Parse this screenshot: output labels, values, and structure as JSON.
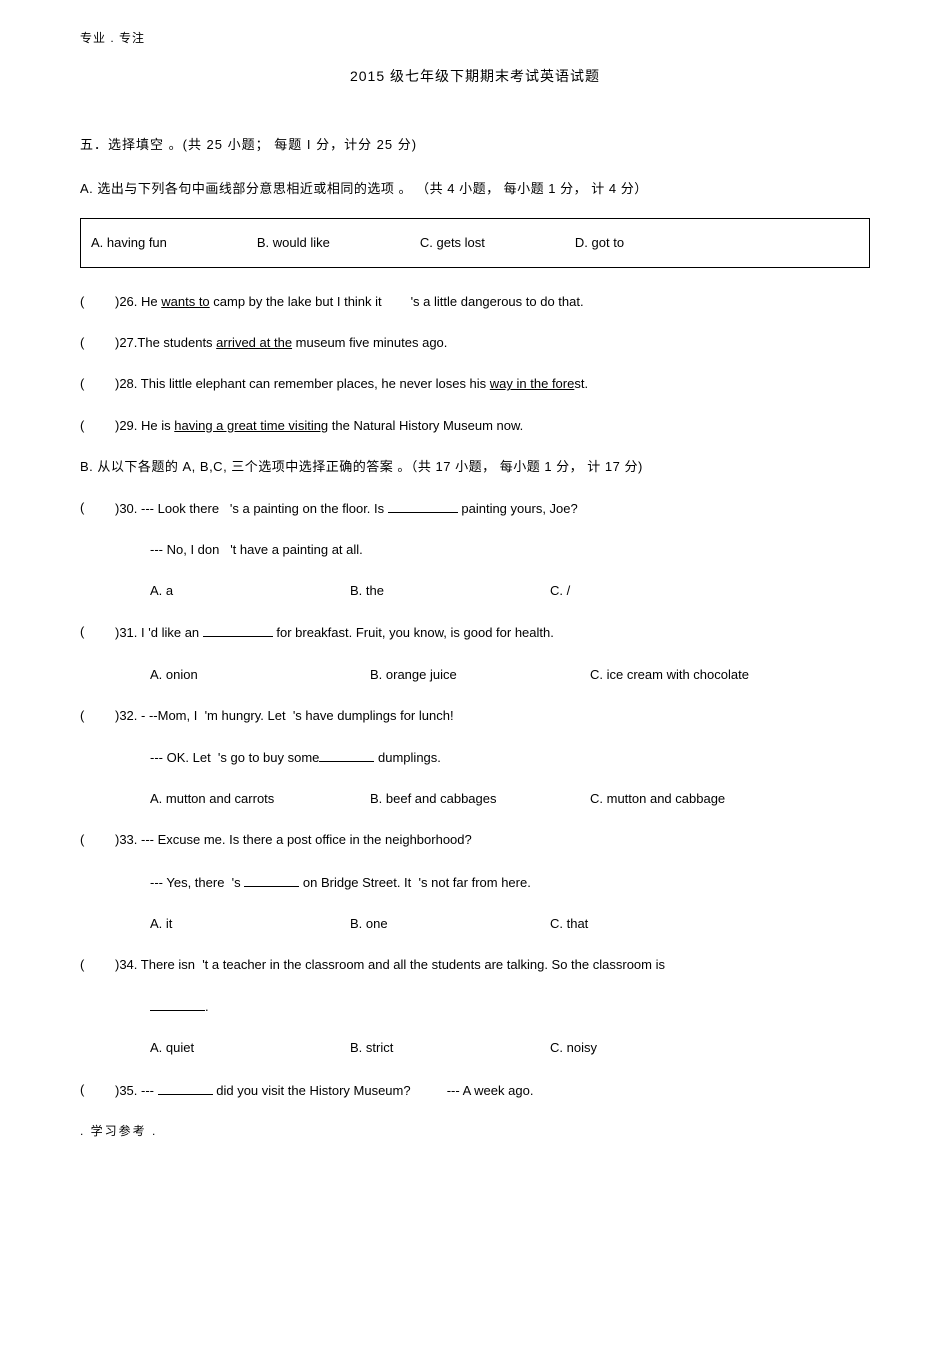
{
  "header": "专业 . 专注",
  "title": "2015  级七年级下期期末考试英语试题",
  "section5_title": "五．选择填空  。(共 25 小题； 每题 I 分，计分 25 分)",
  "partA_instruction": "A. 选出与下列各句中画线部分意思相近或相同的选项       。 （共 4 小题， 每小题  1 分， 计 4 分）",
  "optionBox": {
    "a": "A. having fun",
    "b": "B. would like",
    "c": "C. gets lost",
    "d": "D. got to"
  },
  "q26": {
    "pre": ")26. He ",
    "u": "wants to",
    "mid": " camp by the lake but I think it",
    "post": "'s a little dangerous to do that."
  },
  "q27": {
    "pre": ")27.The students ",
    "u": "arrived at the",
    "post": " museum five minutes ago."
  },
  "q28": {
    "pre": ")28. This little elephant can remember places, he never loses his ",
    "u": "way in the fore",
    "post": "st."
  },
  "q29": {
    "pre": ")29. He is ",
    "u": "having a great time visiting",
    "post": " the Natural History Museum now."
  },
  "partB_instruction": "B.  从以下各题的   A, B,C,  三个选项中选择正确的答案    。（共 17 小题， 每小题  1 分， 计 17 分)",
  "q30": {
    "line1a": ")30.  --- Look there",
    "line1b": "'s a painting on the floor. Is ",
    "line1c": " painting yours, Joe?",
    "line2a": "--- No, I don",
    "line2b": "'t have a painting at all.",
    "a": "A. a",
    "b": "B. the",
    "c": "C. /"
  },
  "q31": {
    "text_a": ")31. I ",
    "text_b": "'d like an ",
    "text_c": " for breakfast. Fruit, you know, is good for health.",
    "a": "A. onion",
    "b": "B. orange juice",
    "c": "C. ice cream with chocolate"
  },
  "q32": {
    "line1a": ")32.  - --Mom, I",
    "line1b": "'m hungry. Let",
    "line1c": "'s have dumplings for lunch!",
    "line2a": "--- OK. Let",
    "line2b": "'s go to buy some",
    "line2c": " dumplings.",
    "a": "A. mutton and carrots",
    "b": "B. beef and cabbages",
    "c": "C. mutton and cabbage"
  },
  "q33": {
    "line1": ")33.  --- Excuse me. Is there a post office in the neighborhood?",
    "line2a": "--- Yes, there",
    "line2b": "'s ",
    "line2c": " on Bridge Street. It",
    "line2d": "'s not far from here.",
    "a": "A. it",
    "b": "B. one",
    "c": "C. that"
  },
  "q34": {
    "line1a": ")34. There isn",
    "line1b": "'t a teacher in the classroom and all the students are talking. So the classroom is",
    "blankline": ".",
    "a": "A. quiet",
    "b": "B. strict",
    "c": "C. noisy"
  },
  "q35": {
    "text_a": ")35.  --- ",
    "text_b": " did you visit the History Museum?",
    "text_c": "--- A week ago."
  },
  "footer": ".     学习参考     ."
}
